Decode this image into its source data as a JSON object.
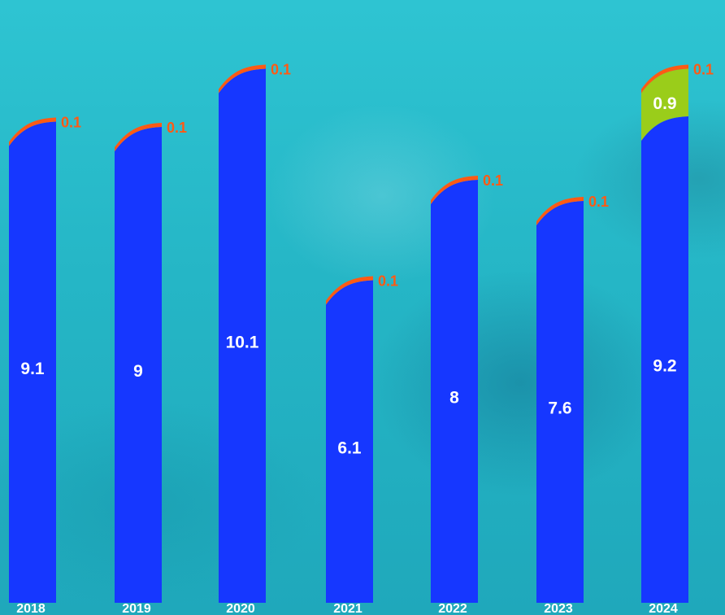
{
  "chart_data": {
    "type": "bar",
    "stacked": true,
    "categories": [
      "2018",
      "2019",
      "2020",
      "2021",
      "2022",
      "2023",
      "2024"
    ],
    "series": [
      {
        "values": [
          9.1,
          9,
          10.1,
          6.1,
          8,
          7.6,
          9.2
        ],
        "value_labels": [
          "9.1",
          "9",
          "10.1",
          "6.1",
          "8",
          "7.6",
          "9.2"
        ],
        "color": "#1637ff"
      },
      {
        "values": [
          0,
          0,
          0,
          0,
          0,
          0,
          0.9
        ],
        "value_labels": [
          "",
          "",
          "",
          "",
          "",
          "",
          "0.9"
        ],
        "color": "#9acd1a"
      },
      {
        "values": [
          0.1,
          0.1,
          0.1,
          0.1,
          0.1,
          0.1,
          0.1
        ],
        "value_labels": [
          "0.1",
          "0.1",
          "0.1",
          "0.1",
          "0.1",
          "0.1",
          "0.1"
        ],
        "color": "#ff5a14"
      }
    ],
    "ylim": [
      0,
      11.2
    ],
    "grid": false,
    "legend": "none",
    "title": "",
    "xlabel": "",
    "ylabel": ""
  }
}
